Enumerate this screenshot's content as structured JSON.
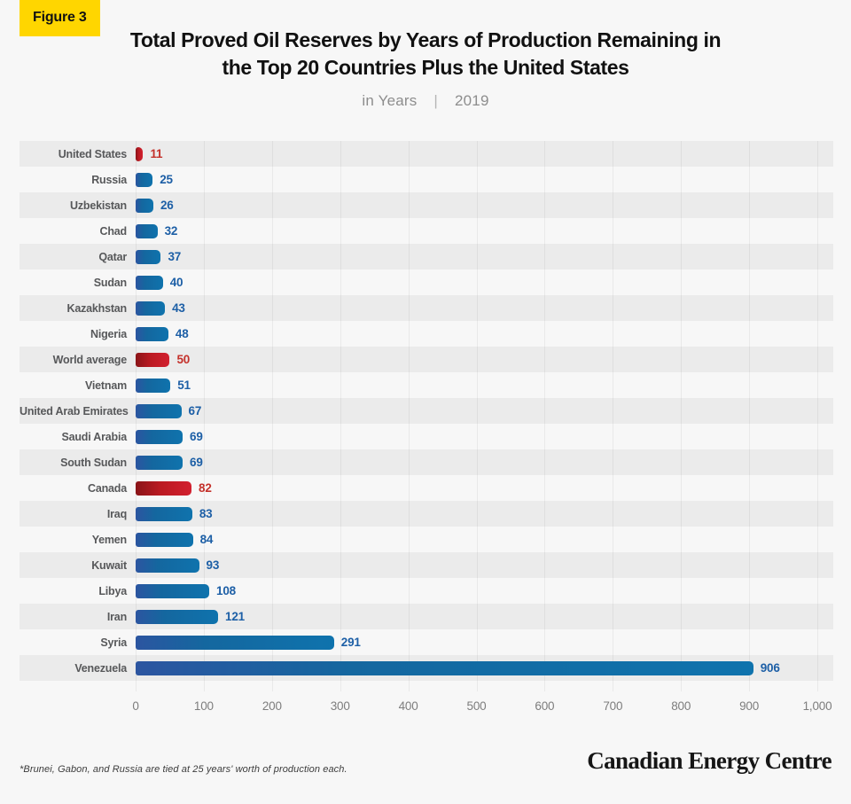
{
  "figure_label": "Figure 3",
  "title_line1": "Total Proved Oil Reserves by Years of Production Remaining in",
  "title_line2": "the Top 20 Countries Plus the United States",
  "subtitle": {
    "unit": "in Years",
    "separator": "|",
    "year": "2019"
  },
  "footnote": "*Brunei, Gabon, and Russia are tied at 25 years' worth of production each.",
  "brand": "Canadian Energy Centre",
  "colors": {
    "background": "#f7f7f7",
    "row_stripe": "#ebebeb",
    "badge_yellow": "#ffd600",
    "bar_blue_dark": "#2c55a0",
    "bar_blue": "#0f73ad",
    "bar_red_dark": "#8a1418",
    "bar_red": "#d2202f",
    "value_blue": "#1d5fa6",
    "value_red": "#c4312b",
    "label_gray": "#57585a",
    "tick_gray": "#7d7d7d"
  },
  "chart_data": {
    "type": "bar",
    "orientation": "horizontal",
    "title": "Total Proved Oil Reserves by Years of Production Remaining in the Top 20 Countries Plus the United States",
    "subtitle": "in Years | 2019",
    "xlabel": "",
    "ylabel": "",
    "xlim": [
      0,
      1000
    ],
    "xticks": [
      "0",
      "100",
      "200",
      "300",
      "400",
      "500",
      "600",
      "700",
      "800",
      "900",
      "1,000"
    ],
    "xtick_values": [
      0,
      100,
      200,
      300,
      400,
      500,
      600,
      700,
      800,
      900,
      1000
    ],
    "grid": "vertical",
    "legend": "none",
    "highlighted_categories": [
      "United States",
      "World average",
      "Canada"
    ],
    "categories": [
      "United States",
      "Russia",
      "Uzbekistan",
      "Chad",
      "Qatar",
      "Sudan",
      "Kazakhstan",
      "Nigeria",
      "World average",
      "Vietnam",
      "United Arab Emirates",
      "Saudi Arabia",
      "South Sudan",
      "Canada",
      "Iraq",
      "Yemen",
      "Kuwait",
      "Libya",
      "Iran",
      "Syria",
      "Venezuela"
    ],
    "values": [
      11,
      25,
      26,
      32,
      37,
      40,
      43,
      48,
      50,
      51,
      67,
      69,
      69,
      82,
      83,
      84,
      93,
      108,
      121,
      291,
      906
    ],
    "rows": [
      {
        "label": "United States",
        "value": 11,
        "color": "red"
      },
      {
        "label": "Russia",
        "value": 25,
        "color": "blue"
      },
      {
        "label": "Uzbekistan",
        "value": 26,
        "color": "blue"
      },
      {
        "label": "Chad",
        "value": 32,
        "color": "blue"
      },
      {
        "label": "Qatar",
        "value": 37,
        "color": "blue"
      },
      {
        "label": "Sudan",
        "value": 40,
        "color": "blue"
      },
      {
        "label": "Kazakhstan",
        "value": 43,
        "color": "blue"
      },
      {
        "label": "Nigeria",
        "value": 48,
        "color": "blue"
      },
      {
        "label": "World average",
        "value": 50,
        "color": "red"
      },
      {
        "label": "Vietnam",
        "value": 51,
        "color": "blue"
      },
      {
        "label": "United Arab Emirates",
        "value": 67,
        "color": "blue"
      },
      {
        "label": "Saudi Arabia",
        "value": 69,
        "color": "blue"
      },
      {
        "label": "South Sudan",
        "value": 69,
        "color": "blue"
      },
      {
        "label": "Canada",
        "value": 82,
        "color": "red"
      },
      {
        "label": "Iraq",
        "value": 83,
        "color": "blue"
      },
      {
        "label": "Yemen",
        "value": 84,
        "color": "blue"
      },
      {
        "label": "Kuwait",
        "value": 93,
        "color": "blue"
      },
      {
        "label": "Libya",
        "value": 108,
        "color": "blue"
      },
      {
        "label": "Iran",
        "value": 121,
        "color": "blue"
      },
      {
        "label": "Syria",
        "value": 291,
        "color": "blue"
      },
      {
        "label": "Venezuela",
        "value": 906,
        "color": "blue"
      }
    ]
  }
}
